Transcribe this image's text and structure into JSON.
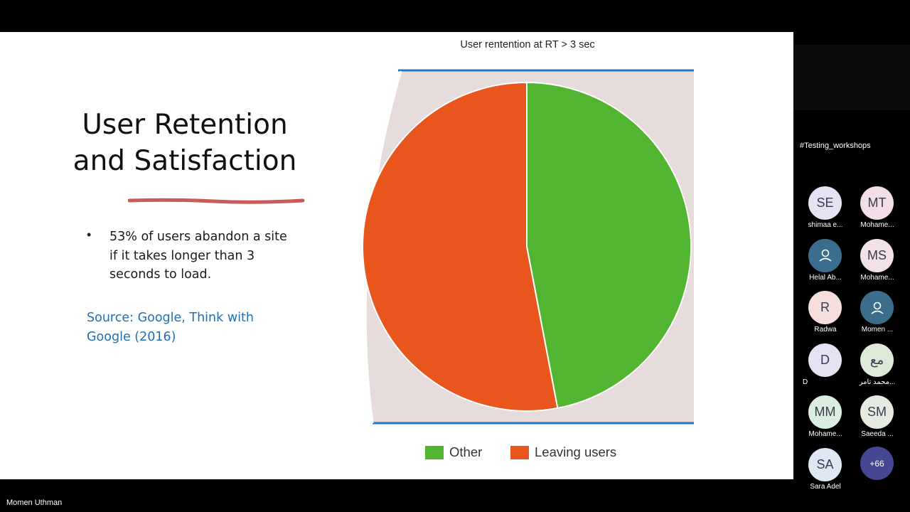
{
  "slide": {
    "title_line1": "User Retention",
    "title_line2": "and Satisfaction",
    "bullet": "53% of users abandon a site if it takes longer than 3 seconds to load.",
    "source": "Source: Google, Think with Google (2016)"
  },
  "chart_data": {
    "type": "pie",
    "title": "User rentention at RT > 3 sec",
    "slices": [
      {
        "label": "Other",
        "value": 47,
        "color": "#52b532"
      },
      {
        "label": "Leaving users",
        "value": 53,
        "color": "#e8561e"
      }
    ],
    "legend": [
      "Other",
      "Leaving users"
    ],
    "legend_position": "bottom"
  },
  "meeting": {
    "channel": "#Testing_workshops",
    "presenter": "Momen Uthman",
    "more_count": "+66",
    "participants": [
      {
        "initials": "SE",
        "name": "shimaa e...",
        "color": "#e6e2f3"
      },
      {
        "initials": "MT",
        "name": "Mohame...",
        "color": "#f3dde8"
      },
      {
        "initials": "",
        "name": "Helal Ab...",
        "color": "#3b6e8c",
        "icon": "person-icon"
      },
      {
        "initials": "MS",
        "name": "Mohame...",
        "color": "#f4e1e5"
      },
      {
        "initials": "R",
        "name": "Radwa",
        "color": "#f5dedc"
      },
      {
        "initials": "",
        "name": "Momen ...",
        "color": "#3b6e8c",
        "icon": "person-icon"
      },
      {
        "initials": "D",
        "name": "D",
        "color": "#e6e2f3"
      },
      {
        "initials": "مع",
        "name": "محمد تامر...",
        "color": "#dfe9d8"
      },
      {
        "initials": "MM",
        "name": "Mohame...",
        "color": "#d9ede0"
      },
      {
        "initials": "SM",
        "name": "Saeeda ...",
        "color": "#e6ebe1"
      },
      {
        "initials": "SA",
        "name": "Sara Adel",
        "color": "#dde8f4"
      }
    ]
  }
}
